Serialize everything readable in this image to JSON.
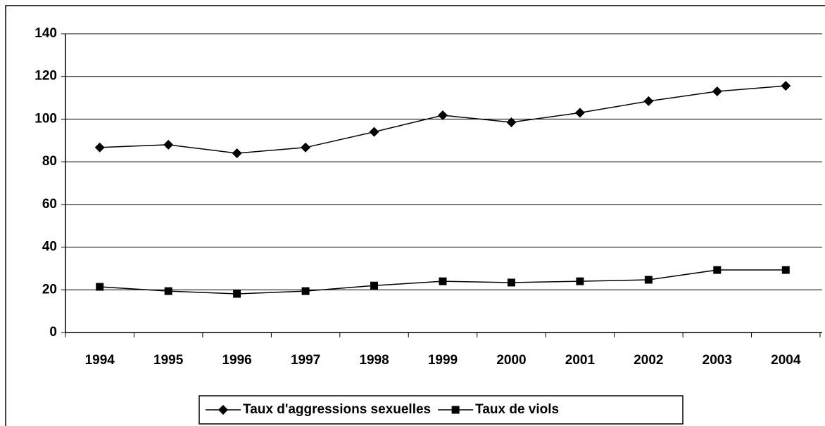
{
  "chart_data": {
    "type": "line",
    "categories": [
      "1994",
      "1995",
      "1996",
      "1997",
      "1998",
      "1999",
      "2000",
      "2001",
      "2002",
      "2003",
      "2004"
    ],
    "series": [
      {
        "name": "Taux d'aggressions sexuelles",
        "color": "#000000",
        "marker": "diamond",
        "values": [
          86.7,
          88,
          84,
          86.7,
          94,
          101.8,
          98.5,
          103,
          108.4,
          113,
          115.6
        ]
      },
      {
        "name": "Taux de viols",
        "color": "#000000",
        "marker": "square",
        "values": [
          21.4,
          19.4,
          18.1,
          19.4,
          22,
          24,
          23.4,
          24,
          24.7,
          29.3,
          29.3
        ]
      }
    ],
    "ylim": [
      0,
      140
    ],
    "yticks": [
      0,
      20,
      40,
      60,
      80,
      100,
      120,
      140
    ],
    "grid": true,
    "legend": "bottom"
  }
}
